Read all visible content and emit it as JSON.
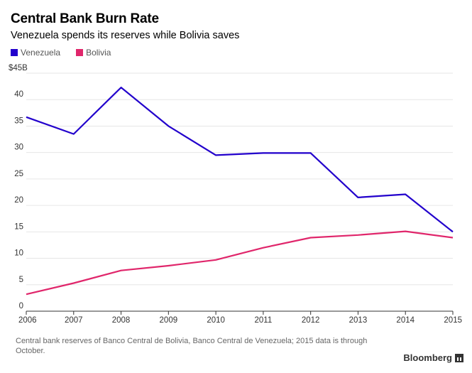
{
  "chart_data": {
    "type": "line",
    "title": "Central Bank Burn Rate",
    "subtitle": "Venezuela spends its reserves while Bolivia saves",
    "x": [
      "2006",
      "2007",
      "2008",
      "2009",
      "2010",
      "2011",
      "2012",
      "2013",
      "2014",
      "2015"
    ],
    "series": [
      {
        "name": "Venezuela",
        "color": "#2200cc",
        "values": [
          36.7,
          33.5,
          42.3,
          35.0,
          29.5,
          29.9,
          29.9,
          21.5,
          22.1,
          15.0
        ]
      },
      {
        "name": "Bolivia",
        "color": "#e0266b",
        "values": [
          3.2,
          5.3,
          7.7,
          8.6,
          9.7,
          12.0,
          13.9,
          14.4,
          15.1,
          13.9
        ]
      }
    ],
    "yticks": [
      0,
      5,
      10,
      15,
      20,
      25,
      30,
      35,
      40
    ],
    "ytick_top_label": "$45B",
    "ylim": [
      0,
      45
    ],
    "grid": true,
    "legend_position": "top-left"
  },
  "footer": {
    "source": "Central bank reserves of Banco Central de Bolivia, Banco Central de Venezuela; 2015 data is through October.",
    "brand": "Bloomberg"
  }
}
